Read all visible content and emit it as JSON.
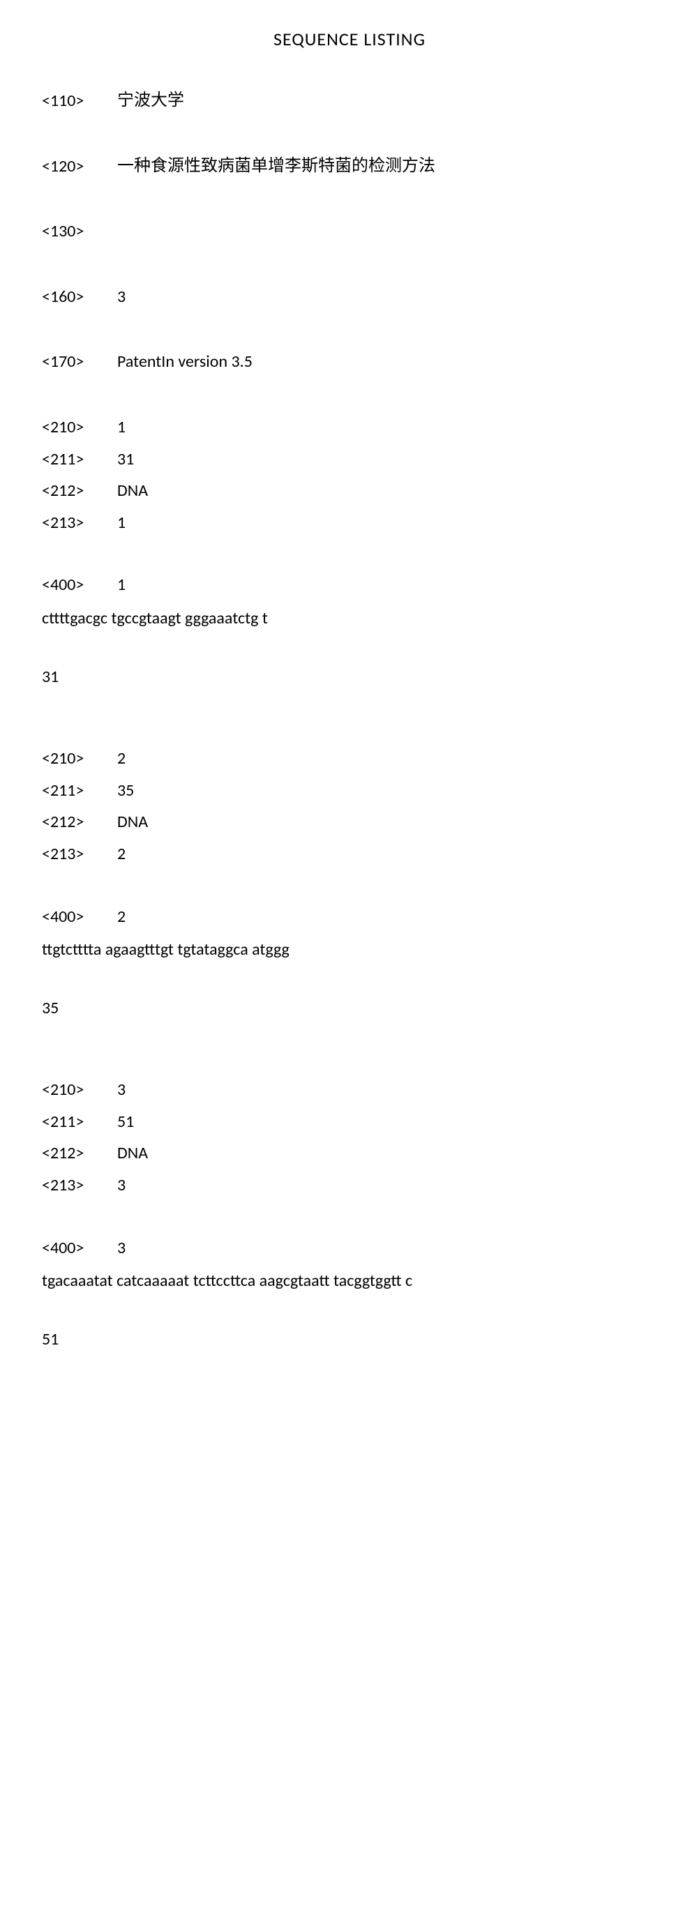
{
  "title": "SEQUENCE LISTING",
  "header": {
    "applicant": {
      "tag": "<110>",
      "value": "宁波大学"
    },
    "inventionTitle": {
      "tag": "<120>",
      "value": "一种食源性致病菌单增李斯特菌的检测方法"
    },
    "fileRef": {
      "tag": "<130>",
      "value": ""
    },
    "seqCount": {
      "tag": "<160>",
      "value": "3"
    },
    "software": {
      "tag": "<170>",
      "value": "PatentIn version 3.5"
    }
  },
  "sequences": [
    {
      "lines": [
        {
          "tag": "<210>",
          "value": "1"
        },
        {
          "tag": "<211>",
          "value": "31"
        },
        {
          "tag": "<212>",
          "value": "DNA"
        },
        {
          "tag": "<213>",
          "value": "1"
        }
      ],
      "feature": {
        "tag": "<400>",
        "value": "1"
      },
      "seqText": "cttttgacgc tgccgtaagt gggaaatctg t",
      "length": "31"
    },
    {
      "lines": [
        {
          "tag": "<210>",
          "value": "2"
        },
        {
          "tag": "<211>",
          "value": "35"
        },
        {
          "tag": "<212>",
          "value": "DNA"
        },
        {
          "tag": "<213>",
          "value": "2"
        }
      ],
      "feature": {
        "tag": "<400>",
        "value": "2"
      },
      "seqText": "ttgtctttta agaagtttgt tgtataggca atggg",
      "length": "35"
    },
    {
      "lines": [
        {
          "tag": "<210>",
          "value": "3"
        },
        {
          "tag": "<211>",
          "value": "51"
        },
        {
          "tag": "<212>",
          "value": "DNA"
        },
        {
          "tag": "<213>",
          "value": "3"
        }
      ],
      "feature": {
        "tag": "<400>",
        "value": "3"
      },
      "seqText": "tgacaaatat catcaaaaat tcttccttca aagcgtaatt tacggtggtt c",
      "length": "51"
    }
  ]
}
